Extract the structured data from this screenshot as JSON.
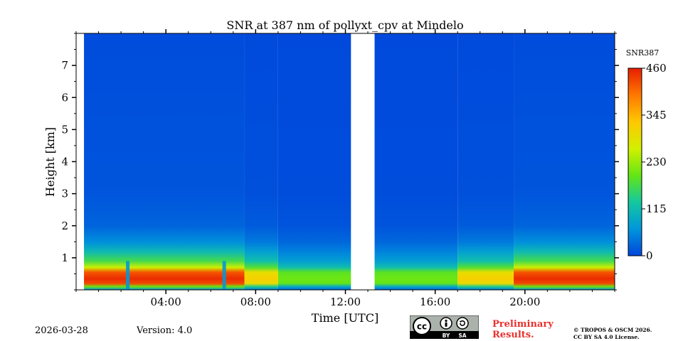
{
  "chart_data": {
    "type": "heatmap",
    "title": "SNR at 387 nm of pollyxt_cpv at Mindelo",
    "xlabel": "Time [UTC]",
    "ylabel": "Height [km]",
    "xlim_hours": [
      0,
      24
    ],
    "ylim_km": [
      0,
      8
    ],
    "x_ticks": [
      {
        "hour": 4,
        "label": "04:00"
      },
      {
        "hour": 8,
        "label": "08:00"
      },
      {
        "hour": 12,
        "label": "12:00"
      },
      {
        "hour": 16,
        "label": "16:00"
      },
      {
        "hour": 20,
        "label": "20:00"
      }
    ],
    "y_ticks": [
      {
        "km": 1,
        "label": "1"
      },
      {
        "km": 2,
        "label": "2"
      },
      {
        "km": 3,
        "label": "3"
      },
      {
        "km": 4,
        "label": "4"
      },
      {
        "km": 5,
        "label": "5"
      },
      {
        "km": 6,
        "label": "6"
      },
      {
        "km": 7,
        "label": "7"
      }
    ],
    "data_start_hour": 0.35,
    "data_gap_hours": [
      12.25,
      13.3
    ],
    "colorbar": {
      "label": "SNR387",
      "range": [
        0,
        460
      ],
      "ticks": [
        {
          "value": 0,
          "label": "0"
        },
        {
          "value": 115,
          "label": "115"
        },
        {
          "value": 230,
          "label": "230"
        },
        {
          "value": 345,
          "label": "345"
        },
        {
          "value": 460,
          "label": "460"
        }
      ],
      "colors": [
        "#0046dc",
        "#0096dc",
        "#14c8a0",
        "#64e614",
        "#d2f000",
        "#ffc800",
        "#ff7800",
        "#e61e00"
      ]
    },
    "background_color": "#0a46d8",
    "profile_bands": [
      {
        "height_km": 0.0,
        "snr": 60
      },
      {
        "height_km": 0.1,
        "snr": 200
      },
      {
        "height_km": 0.2,
        "snr": 430
      },
      {
        "height_km": 0.35,
        "snr": 450
      },
      {
        "height_km": 0.55,
        "snr": 420
      },
      {
        "height_km": 0.7,
        "snr": 260
      },
      {
        "height_km": 0.9,
        "snr": 170
      },
      {
        "height_km": 1.2,
        "snr": 110
      },
      {
        "height_km": 1.5,
        "snr": 60
      },
      {
        "height_km": 2.0,
        "snr": 25
      },
      {
        "height_km": 3.0,
        "snr": 12
      },
      {
        "height_km": 8.0,
        "snr": 5
      }
    ],
    "period_scaling": [
      {
        "start_hour": 0.35,
        "end_hour": 7.5,
        "scale": 1.0
      },
      {
        "start_hour": 7.5,
        "end_hour": 9.0,
        "scale": 0.7
      },
      {
        "start_hour": 9.0,
        "end_hour": 12.25,
        "scale": 0.45
      },
      {
        "start_hour": 13.3,
        "end_hour": 17.0,
        "scale": 0.5
      },
      {
        "start_hour": 17.0,
        "end_hour": 19.5,
        "scale": 0.7
      },
      {
        "start_hour": 19.5,
        "end_hour": 24.0,
        "scale": 1.0
      }
    ],
    "dropout_hours": [
      2.3,
      6.6
    ]
  },
  "footer": {
    "date": "2026-03-28",
    "version": "Version: 4.0",
    "license_badge": [
      "BY",
      "SA"
    ],
    "preliminary": [
      "Preliminary",
      "Results."
    ],
    "copyright": [
      "© TROPOS & OSCM 2026.",
      "CC BY SA 4.0 License."
    ]
  }
}
